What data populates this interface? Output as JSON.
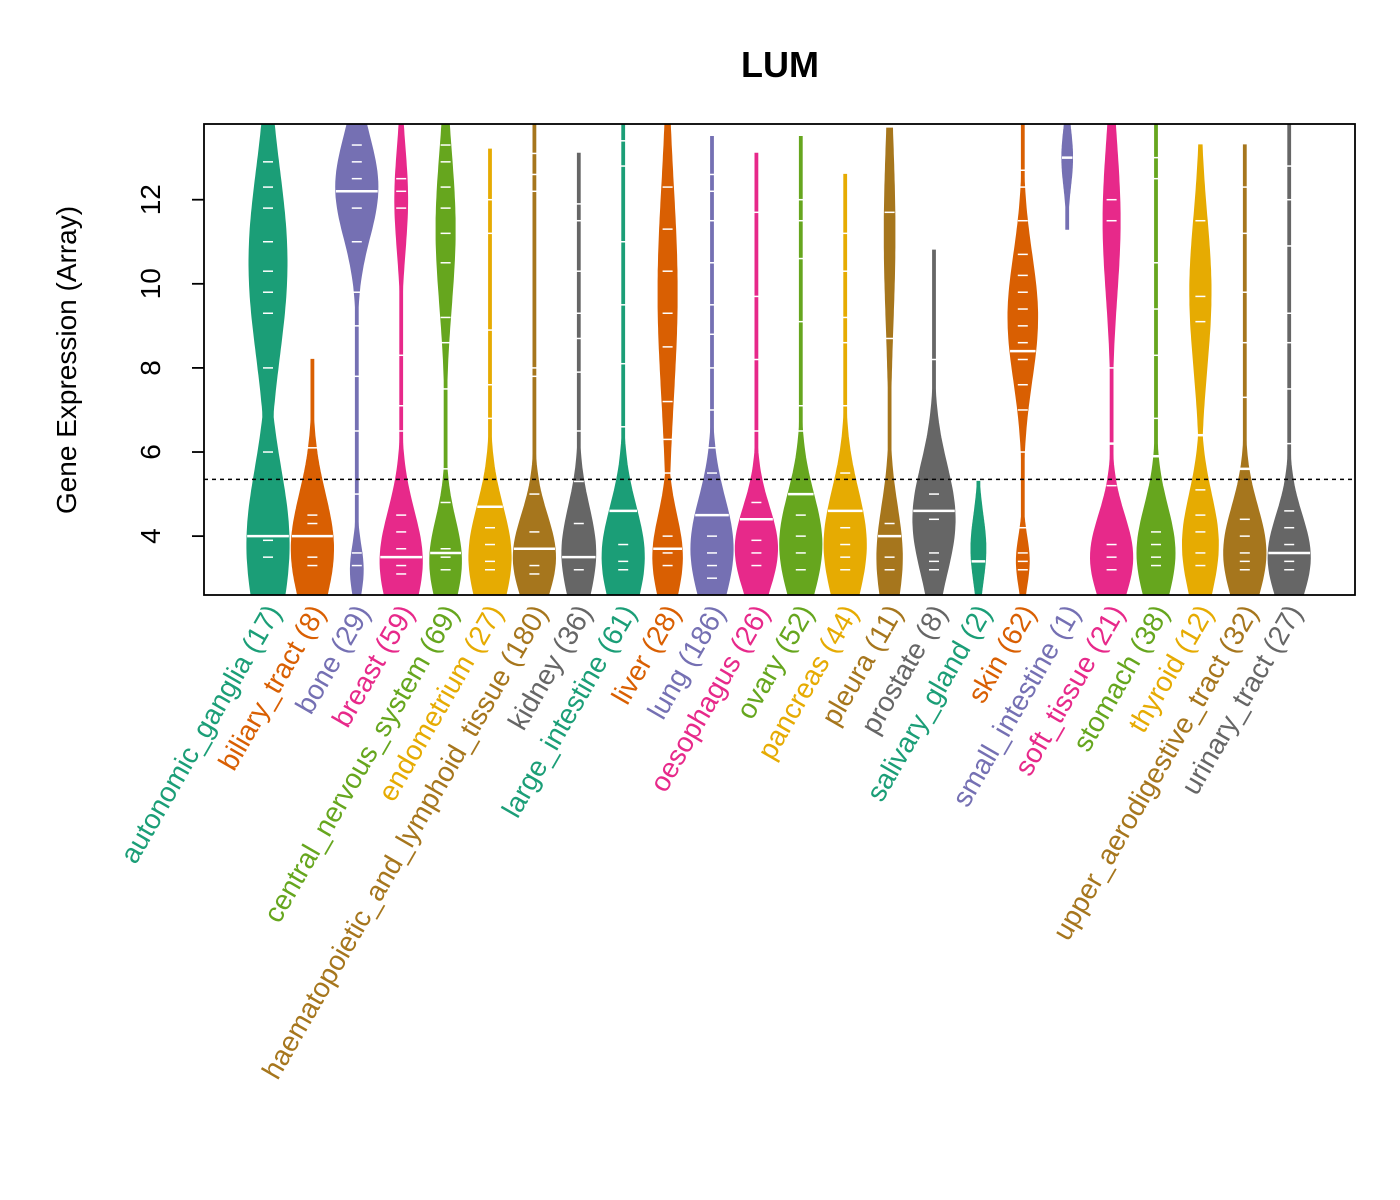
{
  "chart_data": {
    "type": "violin",
    "title": "LUM",
    "ylabel": "Gene Expression (Array)",
    "xlabel": "",
    "ylim": [
      2.6,
      13.8
    ],
    "yticks": [
      4,
      6,
      8,
      10,
      12
    ],
    "threshold": 5.35,
    "categories": [
      {
        "name": "autonomic_ganglia",
        "n": 17,
        "color": "#1B9E77",
        "label": "autonomic_ganglia (17)",
        "min": 2.6,
        "max": 13.8,
        "median": 4.0,
        "lobes": [
          [
            3.8,
            1.0,
            1.8
          ],
          [
            10.5,
            0.9,
            2.2
          ]
        ],
        "points": [
          3.5,
          3.9,
          4.0,
          6.0,
          8.0,
          9.3,
          9.8,
          10.3,
          11.0,
          11.8,
          12.3,
          12.9
        ]
      },
      {
        "name": "biliary_tract",
        "n": 8,
        "color": "#D95F02",
        "label": "biliary_tract (8)",
        "min": 2.6,
        "max": 8.2,
        "median": 4.0,
        "lobes": [
          [
            3.7,
            1.0,
            1.3
          ]
        ],
        "points": [
          3.3,
          3.5,
          4.0,
          4.3,
          4.5,
          6.1
        ]
      },
      {
        "name": "bone",
        "n": 29,
        "color": "#7570B3",
        "label": "bone (29)",
        "min": 2.6,
        "max": 13.8,
        "median": 12.2,
        "lobes": [
          [
            12.3,
            1.0,
            1.2
          ],
          [
            3.2,
            0.3,
            0.6
          ]
        ],
        "points": [
          3.3,
          3.6,
          5.0,
          6.5,
          7.8,
          9.0,
          9.8,
          11.0,
          11.8,
          12.2,
          12.5,
          12.9,
          13.3
        ]
      },
      {
        "name": "breast",
        "n": 59,
        "color": "#E7298A",
        "label": "breast (59)",
        "min": 2.6,
        "max": 13.8,
        "median": 3.5,
        "lobes": [
          [
            3.4,
            1.0,
            1.2
          ],
          [
            12.0,
            0.3,
            1.2
          ]
        ],
        "points": [
          3.1,
          3.3,
          3.5,
          3.7,
          4.1,
          4.5,
          6.5,
          7.1,
          8.3,
          11.8,
          12.2,
          12.5
        ]
      },
      {
        "name": "central_nervous_system",
        "n": 69,
        "color": "#66A61E",
        "label": "central_nervous_system (69)",
        "min": 2.6,
        "max": 13.8,
        "median": 3.6,
        "lobes": [
          [
            3.4,
            0.75,
            1.0
          ],
          [
            11.3,
            0.45,
            1.8
          ]
        ],
        "points": [
          3.2,
          3.5,
          3.7,
          4.8,
          5.6,
          7.5,
          8.6,
          9.2,
          10.5,
          11.2,
          11.8,
          12.3,
          12.9,
          13.3
        ]
      },
      {
        "name": "endometrium",
        "n": 27,
        "color": "#E6AB02",
        "label": "endometrium (27)",
        "min": 2.6,
        "max": 13.2,
        "median": 4.7,
        "lobes": [
          [
            3.5,
            1.0,
            1.2
          ]
        ],
        "points": [
          3.2,
          3.4,
          3.8,
          4.2,
          4.7,
          6.8,
          7.6,
          8.9,
          11.2,
          12.0
        ]
      },
      {
        "name": "haematopoietic_and_lymphoid_tissue",
        "n": 180,
        "color": "#A6761D",
        "label": "haematopoietic_and_lymphoid_tissue (180)",
        "min": 2.6,
        "max": 13.8,
        "median": 3.7,
        "lobes": [
          [
            3.5,
            1.0,
            1.0
          ]
        ],
        "points": [
          3.1,
          3.3,
          3.7,
          4.1,
          5.0,
          7.8,
          8.0,
          12.2,
          12.6,
          13.1
        ]
      },
      {
        "name": "kidney",
        "n": 36,
        "color": "#666666",
        "label": "kidney (36)",
        "min": 2.6,
        "max": 13.1,
        "median": 3.5,
        "lobes": [
          [
            3.6,
            0.8,
            1.1
          ]
        ],
        "points": [
          3.2,
          3.5,
          4.3,
          5.3,
          6.5,
          7.9,
          8.7,
          9.3,
          10.3,
          11.5,
          11.9
        ]
      },
      {
        "name": "large_intestine",
        "n": 61,
        "color": "#1B9E77",
        "label": "large_intestine (61)",
        "min": 2.6,
        "max": 13.8,
        "median": 4.6,
        "lobes": [
          [
            3.5,
            1.0,
            1.2
          ]
        ],
        "points": [
          3.2,
          3.4,
          3.8,
          4.6,
          6.6,
          8.1,
          9.5,
          11.0,
          12.8,
          13.4
        ]
      },
      {
        "name": "liver",
        "n": 28,
        "color": "#D95F02",
        "label": "liver (28)",
        "min": 2.6,
        "max": 13.8,
        "median": 3.7,
        "lobes": [
          [
            3.5,
            0.7,
            1.0
          ],
          [
            9.8,
            0.45,
            2.5
          ]
        ],
        "points": [
          3.3,
          3.6,
          4.0,
          5.5,
          6.3,
          7.2,
          8.5,
          9.3,
          10.3,
          11.3,
          12.3
        ]
      },
      {
        "name": "lung",
        "n": 186,
        "color": "#7570B3",
        "label": "lung (186)",
        "min": 2.6,
        "max": 13.5,
        "median": 4.5,
        "lobes": [
          [
            3.7,
            1.0,
            1.2
          ]
        ],
        "points": [
          3.0,
          3.3,
          3.6,
          4.0,
          4.5,
          5.5,
          6.1,
          7.0,
          8.0,
          8.8,
          9.5,
          10.5,
          11.5,
          12.2,
          12.6
        ]
      },
      {
        "name": "oesophagus",
        "n": 26,
        "color": "#E7298A",
        "label": "oesophagus (26)",
        "min": 2.6,
        "max": 13.1,
        "median": 4.4,
        "lobes": [
          [
            3.7,
            1.0,
            1.0
          ]
        ],
        "points": [
          3.3,
          3.6,
          3.9,
          4.4,
          4.8,
          6.5,
          8.2,
          9.7,
          11.7
        ]
      },
      {
        "name": "ovary",
        "n": 52,
        "color": "#66A61E",
        "label": "ovary (52)",
        "min": 2.6,
        "max": 13.5,
        "median": 5.0,
        "lobes": [
          [
            3.8,
            1.0,
            1.2
          ]
        ],
        "points": [
          3.2,
          3.6,
          4.0,
          4.5,
          5.0,
          6.5,
          7.1,
          9.1,
          10.6,
          11.5,
          12.0
        ]
      },
      {
        "name": "pancreas",
        "n": 44,
        "color": "#E6AB02",
        "label": "pancreas (44)",
        "min": 2.6,
        "max": 12.6,
        "median": 4.6,
        "lobes": [
          [
            3.8,
            1.0,
            1.3
          ]
        ],
        "points": [
          3.2,
          3.5,
          3.8,
          4.2,
          4.6,
          5.5,
          7.1,
          8.6,
          9.2,
          10.3,
          11.2
        ]
      },
      {
        "name": "pleura",
        "n": 11,
        "color": "#A6761D",
        "label": "pleura (11)",
        "min": 2.6,
        "max": 13.7,
        "median": 4.0,
        "lobes": [
          [
            3.5,
            0.6,
            1.2
          ],
          [
            11.2,
            0.25,
            2.2
          ]
        ],
        "points": [
          3.2,
          3.5,
          4.0,
          4.3,
          8.7,
          11.7
        ]
      },
      {
        "name": "prostate",
        "n": 8,
        "color": "#666666",
        "label": "prostate (8)",
        "min": 2.6,
        "max": 10.8,
        "median": 4.6,
        "lobes": [
          [
            4.4,
            1.0,
            1.3
          ]
        ],
        "points": [
          3.2,
          3.4,
          3.6,
          4.4,
          4.6,
          5.0,
          8.2
        ]
      },
      {
        "name": "salivary_gland",
        "n": 2,
        "color": "#1B9E77",
        "label": "salivary_gland (2)",
        "min": 2.6,
        "max": 5.3,
        "median": 3.4,
        "lobes": [
          [
            3.7,
            0.35,
            0.8
          ]
        ],
        "points": [
          3.4
        ]
      },
      {
        "name": "skin",
        "n": 62,
        "color": "#D95F02",
        "label": "skin (62)",
        "min": 2.6,
        "max": 13.8,
        "median": 8.4,
        "lobes": [
          [
            9.2,
            0.7,
            1.5
          ],
          [
            3.4,
            0.3,
            0.6
          ]
        ],
        "points": [
          3.2,
          3.4,
          3.6,
          4.2,
          6.0,
          7.0,
          7.6,
          8.2,
          8.6,
          9.0,
          9.4,
          9.8,
          10.2,
          10.7,
          11.5,
          12.3,
          12.7
        ]
      },
      {
        "name": "small_intestine",
        "n": 1,
        "color": "#7570B3",
        "label": "small_intestine (1)",
        "min": 11.3,
        "max": 13.8,
        "median": 13.0,
        "lobes": [
          [
            13.0,
            0.25,
            0.7
          ]
        ],
        "points": [
          13.0
        ]
      },
      {
        "name": "soft_tissue",
        "n": 21,
        "color": "#E7298A",
        "label": "soft_tissue (21)",
        "min": 2.6,
        "max": 13.8,
        "median": 6.2,
        "lobes": [
          [
            3.5,
            1.0,
            1.0
          ],
          [
            11.5,
            0.4,
            1.8
          ]
        ],
        "points": [
          3.2,
          3.5,
          3.8,
          5.2,
          6.2,
          8.0,
          11.5,
          12.0
        ]
      },
      {
        "name": "stomach",
        "n": 38,
        "color": "#66A61E",
        "label": "stomach (38)",
        "min": 2.6,
        "max": 13.8,
        "median": 5.9,
        "lobes": [
          [
            3.6,
            0.9,
            1.1
          ]
        ],
        "points": [
          3.3,
          3.5,
          3.8,
          4.1,
          5.9,
          6.8,
          8.3,
          9.4,
          10.5,
          12.5,
          13.0
        ]
      },
      {
        "name": "thyroid",
        "n": 12,
        "color": "#E6AB02",
        "label": "thyroid (12)",
        "min": 2.6,
        "max": 13.3,
        "median": 6.4,
        "lobes": [
          [
            3.8,
            0.85,
            1.2
          ],
          [
            9.8,
            0.5,
            1.8
          ]
        ],
        "points": [
          3.3,
          3.6,
          4.1,
          4.5,
          5.1,
          6.4,
          9.1,
          9.7,
          11.5
        ]
      },
      {
        "name": "upper_aerodigestive_tract",
        "n": 32,
        "color": "#A6761D",
        "label": "upper_aerodigestive_tract (32)",
        "min": 2.6,
        "max": 13.3,
        "median": 5.6,
        "lobes": [
          [
            3.6,
            1.0,
            1.1
          ]
        ],
        "points": [
          3.2,
          3.4,
          3.6,
          4.0,
          4.4,
          5.6,
          7.3,
          8.6,
          9.8,
          11.2,
          12.3
        ]
      },
      {
        "name": "urinary_tract",
        "n": 27,
        "color": "#666666",
        "label": "urinary_tract (27)",
        "min": 2.6,
        "max": 13.8,
        "median": 3.6,
        "lobes": [
          [
            3.5,
            1.0,
            1.0
          ]
        ],
        "points": [
          3.2,
          3.4,
          3.8,
          4.2,
          4.6,
          6.2,
          7.5,
          8.6,
          9.3,
          10.9,
          12.0,
          12.8
        ]
      }
    ]
  }
}
